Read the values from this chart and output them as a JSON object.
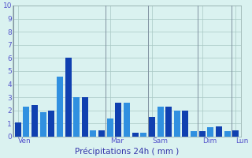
{
  "bar_values": [
    1.1,
    2.3,
    2.4,
    1.85,
    2.0,
    4.6,
    6.0,
    3.0,
    3.0,
    0.45,
    0.45,
    1.4,
    2.6,
    2.6,
    0.3,
    0.3,
    1.5,
    2.3,
    2.3,
    2.0,
    2.0,
    0.4,
    0.4,
    0.7,
    0.8,
    0.4,
    0.5
  ],
  "day_positions": [
    0,
    11,
    16,
    22,
    26
  ],
  "day_labels": [
    "Ven",
    "Mar",
    "Sam",
    "Dim",
    "Lun"
  ],
  "day_vlines": [
    0,
    11,
    16,
    22,
    26
  ],
  "n_bars": 27,
  "xlabel": "Précipitations 24h ( mm )",
  "ylim": [
    0,
    10
  ],
  "yticks": [
    0,
    1,
    2,
    3,
    4,
    5,
    6,
    7,
    8,
    9,
    10
  ],
  "bar_color_dark": "#1040b0",
  "bar_color_light": "#3090e0",
  "bg_color": "#daf2f0",
  "grid_color": "#a8c8c4",
  "label_color": "#5555cc",
  "xlabel_color": "#3333aa",
  "ytick_fontsize": 6.5,
  "xtick_fontsize": 6.5,
  "xlabel_fontsize": 7.5
}
